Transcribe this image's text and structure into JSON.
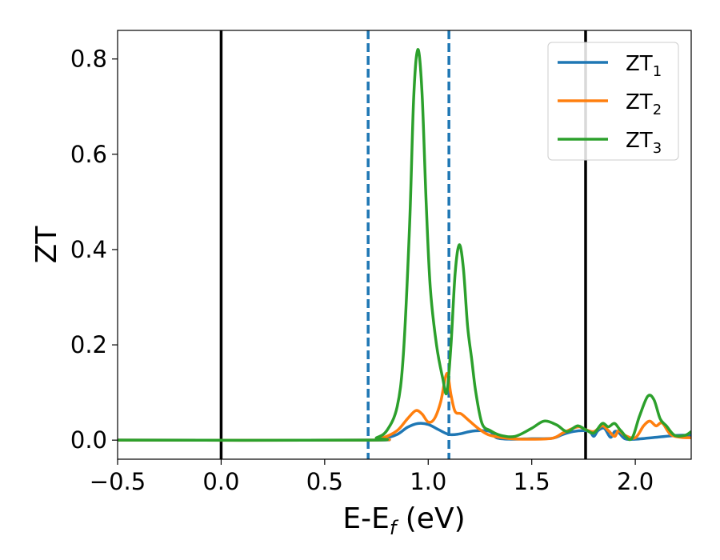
{
  "chart_data": {
    "type": "line",
    "xlabel": {
      "main": "E-E",
      "sub": "f",
      "tail": " (eV)"
    },
    "ylabel": "ZT",
    "xlim": [
      -0.5,
      2.27
    ],
    "ylim": [
      -0.04,
      0.86
    ],
    "xticks": [
      -0.5,
      0.0,
      0.5,
      1.0,
      1.5,
      2.0
    ],
    "xtick_labels": [
      "−0.5",
      "0.0",
      "0.5",
      "1.0",
      "1.5",
      "2.0"
    ],
    "yticks": [
      0.0,
      0.2,
      0.4,
      0.6,
      0.8
    ],
    "ytick_labels": [
      "0.0",
      "0.2",
      "0.4",
      "0.6",
      "0.8"
    ],
    "grid": false,
    "legend_position": "top-right",
    "vlines": [
      {
        "x": 0.0,
        "style": "solid",
        "color": "#000000"
      },
      {
        "x": 1.76,
        "style": "solid",
        "color": "#000000"
      },
      {
        "x": 0.71,
        "style": "dashed",
        "color": "#1f77b4"
      },
      {
        "x": 1.1,
        "style": "dashed",
        "color": "#1f77b4"
      }
    ],
    "series": [
      {
        "name": "ZT",
        "sub": "1",
        "color": "#1f77b4",
        "points": [
          [
            -0.5,
            0.0
          ],
          [
            0.7,
            0.0
          ],
          [
            0.78,
            0.003
          ],
          [
            0.85,
            0.012
          ],
          [
            0.9,
            0.027
          ],
          [
            0.95,
            0.035
          ],
          [
            1.0,
            0.033
          ],
          [
            1.05,
            0.022
          ],
          [
            1.1,
            0.012
          ],
          [
            1.15,
            0.013
          ],
          [
            1.2,
            0.018
          ],
          [
            1.25,
            0.02
          ],
          [
            1.3,
            0.018
          ],
          [
            1.33,
            0.005
          ],
          [
            1.4,
            0.002
          ],
          [
            1.5,
            0.003
          ],
          [
            1.6,
            0.004
          ],
          [
            1.65,
            0.012
          ],
          [
            1.7,
            0.018
          ],
          [
            1.75,
            0.02
          ],
          [
            1.78,
            0.018
          ],
          [
            1.8,
            0.008
          ],
          [
            1.82,
            0.02
          ],
          [
            1.85,
            0.025
          ],
          [
            1.88,
            0.006
          ],
          [
            1.9,
            0.018
          ],
          [
            1.92,
            0.016
          ],
          [
            1.95,
            0.003
          ],
          [
            2.0,
            0.002
          ],
          [
            2.1,
            0.006
          ],
          [
            2.2,
            0.01
          ],
          [
            2.27,
            0.01
          ]
        ]
      },
      {
        "name": "ZT",
        "sub": "2",
        "color": "#ff7f0e",
        "points": [
          [
            -0.5,
            0.0
          ],
          [
            0.7,
            0.0
          ],
          [
            0.78,
            0.005
          ],
          [
            0.85,
            0.02
          ],
          [
            0.9,
            0.045
          ],
          [
            0.94,
            0.062
          ],
          [
            0.97,
            0.055
          ],
          [
            1.0,
            0.038
          ],
          [
            1.03,
            0.045
          ],
          [
            1.06,
            0.08
          ],
          [
            1.09,
            0.14
          ],
          [
            1.11,
            0.095
          ],
          [
            1.13,
            0.06
          ],
          [
            1.16,
            0.055
          ],
          [
            1.2,
            0.04
          ],
          [
            1.25,
            0.022
          ],
          [
            1.3,
            0.01
          ],
          [
            1.4,
            0.003
          ],
          [
            1.5,
            0.002
          ],
          [
            1.6,
            0.004
          ],
          [
            1.65,
            0.015
          ],
          [
            1.7,
            0.025
          ],
          [
            1.73,
            0.028
          ],
          [
            1.76,
            0.022
          ],
          [
            1.8,
            0.018
          ],
          [
            1.84,
            0.03
          ],
          [
            1.87,
            0.02
          ],
          [
            1.9,
            0.008
          ],
          [
            1.92,
            0.02
          ],
          [
            1.95,
            0.01
          ],
          [
            2.0,
            0.005
          ],
          [
            2.04,
            0.03
          ],
          [
            2.07,
            0.04
          ],
          [
            2.1,
            0.03
          ],
          [
            2.13,
            0.036
          ],
          [
            2.17,
            0.012
          ],
          [
            2.22,
            0.006
          ],
          [
            2.27,
            0.005
          ]
        ]
      },
      {
        "name": "ZT",
        "sub": "3",
        "color": "#2ca02c",
        "points": [
          [
            -0.5,
            0.0
          ],
          [
            0.7,
            0.0
          ],
          [
            0.75,
            0.005
          ],
          [
            0.8,
            0.02
          ],
          [
            0.85,
            0.07
          ],
          [
            0.88,
            0.18
          ],
          [
            0.91,
            0.45
          ],
          [
            0.93,
            0.72
          ],
          [
            0.95,
            0.82
          ],
          [
            0.97,
            0.73
          ],
          [
            0.99,
            0.5
          ],
          [
            1.01,
            0.32
          ],
          [
            1.04,
            0.2
          ],
          [
            1.07,
            0.13
          ],
          [
            1.09,
            0.1
          ],
          [
            1.11,
            0.2
          ],
          [
            1.13,
            0.35
          ],
          [
            1.15,
            0.41
          ],
          [
            1.17,
            0.36
          ],
          [
            1.19,
            0.24
          ],
          [
            1.21,
            0.17
          ],
          [
            1.23,
            0.1
          ],
          [
            1.26,
            0.035
          ],
          [
            1.3,
            0.02
          ],
          [
            1.35,
            0.01
          ],
          [
            1.42,
            0.008
          ],
          [
            1.5,
            0.025
          ],
          [
            1.56,
            0.04
          ],
          [
            1.62,
            0.032
          ],
          [
            1.67,
            0.018
          ],
          [
            1.72,
            0.03
          ],
          [
            1.76,
            0.022
          ],
          [
            1.8,
            0.015
          ],
          [
            1.84,
            0.035
          ],
          [
            1.87,
            0.028
          ],
          [
            1.9,
            0.035
          ],
          [
            1.93,
            0.02
          ],
          [
            1.98,
            0.002
          ],
          [
            2.02,
            0.05
          ],
          [
            2.06,
            0.092
          ],
          [
            2.09,
            0.085
          ],
          [
            2.12,
            0.045
          ],
          [
            2.15,
            0.03
          ],
          [
            2.19,
            0.01
          ],
          [
            2.24,
            0.01
          ],
          [
            2.27,
            0.018
          ]
        ]
      }
    ]
  }
}
